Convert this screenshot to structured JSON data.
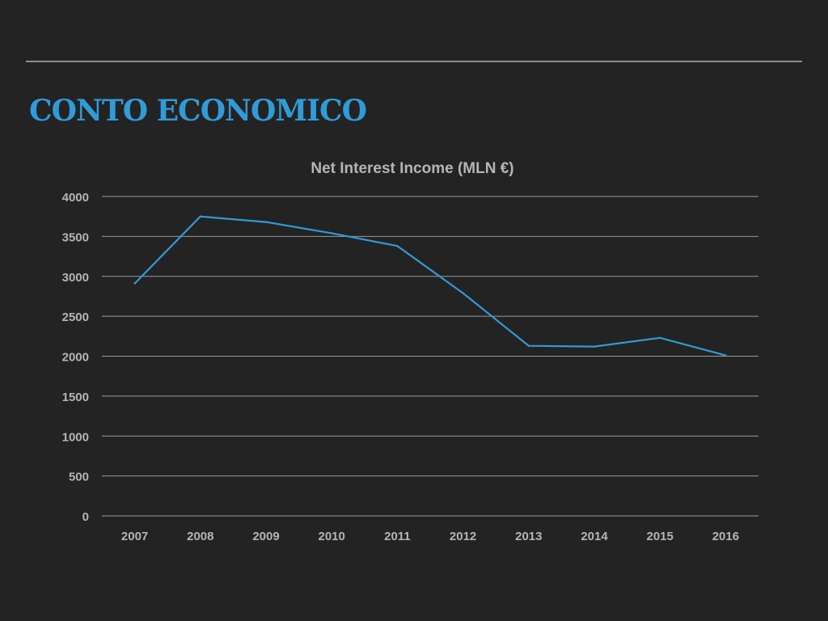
{
  "slide": {
    "title": "CONTO ECONOMICO",
    "accent_color": "#2f9bd8",
    "background_color": "#232323"
  },
  "chart_data": {
    "type": "line",
    "title": "Net Interest Income (MLN €)",
    "xlabel": "",
    "ylabel": "",
    "categories": [
      "2007",
      "2008",
      "2009",
      "2010",
      "2011",
      "2012",
      "2013",
      "2014",
      "2015",
      "2016"
    ],
    "series": [
      {
        "color": "#3399d6",
        "values": [
          2910,
          3750,
          3680,
          3540,
          3380,
          2790,
          2130,
          2120,
          2230,
          2010
        ]
      }
    ],
    "ylim": [
      0,
      4000
    ],
    "yticks": [
      0,
      500,
      1000,
      1500,
      2000,
      2500,
      3000,
      3500,
      4000
    ],
    "grid": true,
    "legend": "none"
  }
}
